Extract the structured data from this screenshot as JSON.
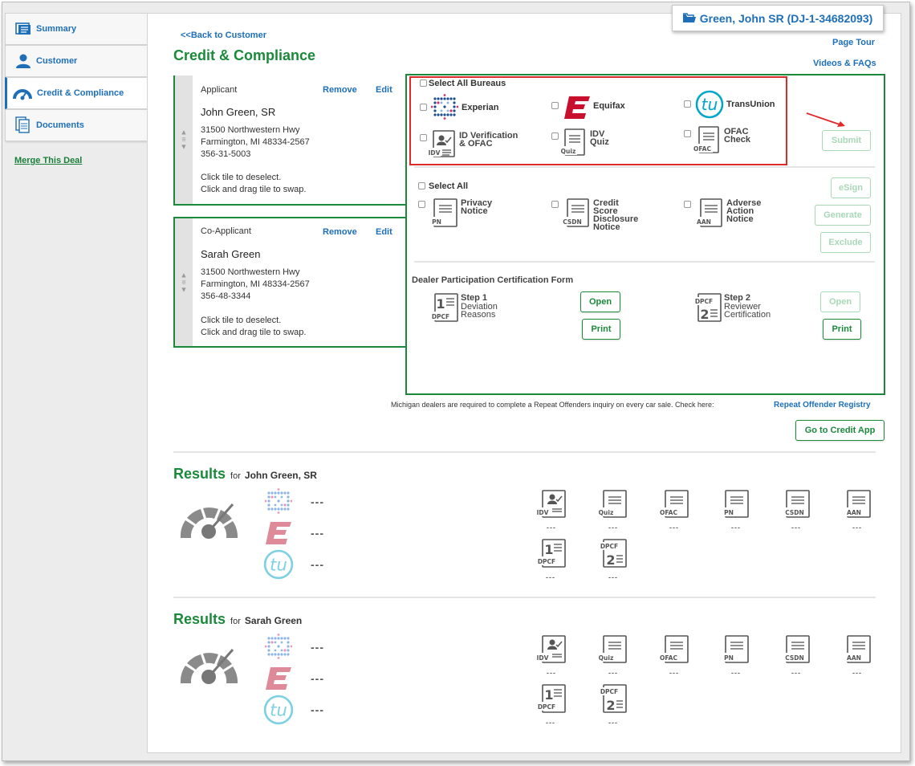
{
  "deal": {
    "title": "Green, John SR (DJ-1-34682093)"
  },
  "sidebar": {
    "items": [
      {
        "label": "Summary",
        "icon": "summary-icon"
      },
      {
        "label": "Customer",
        "icon": "person-icon"
      },
      {
        "label": "Credit & Compliance",
        "icon": "gauge-icon"
      },
      {
        "label": "Documents",
        "icon": "documents-icon"
      }
    ],
    "merge_label": "Merge This Deal"
  },
  "header": {
    "back_label": "<<Back to Customer",
    "title": "Credit & Compliance",
    "page_tour_label": "Page Tour",
    "videos_label": "Videos & FAQs"
  },
  "applicants": [
    {
      "role": "Applicant",
      "remove_label": "Remove",
      "edit_label": "Edit",
      "name": "John Green, SR",
      "address1": "31500 Northwestern Hwy",
      "address2": "Farmington, MI 48334-2567",
      "ssn": "356-31-5003",
      "hint1": "Click tile to deselect.",
      "hint2": "Click and drag tile to swap."
    },
    {
      "role": "Co-Applicant",
      "remove_label": "Remove",
      "edit_label": "Edit",
      "name": "Sarah Green",
      "address1": "31500 Northwestern Hwy",
      "address2": "Farmington, MI 48334-2567",
      "ssn": "356-48-3344",
      "hint1": "Click tile to deselect.",
      "hint2": "Click and drag tile to swap."
    }
  ],
  "bureaus": {
    "select_all_label": "Select All Bureaus",
    "experian": "Experian",
    "equifax": "Equifax",
    "transunion": "TransUnion",
    "idv_line1": "ID Verification",
    "idv_line2": "& OFAC",
    "idvquiz_line1": "IDV",
    "idvquiz_line2": "Quiz",
    "ofac_line1": "OFAC",
    "ofac_line2": "Check",
    "submit_label": "Submit"
  },
  "notices": {
    "select_all_label": "Select All",
    "privacy_line1": "Privacy",
    "privacy_line2": "Notice",
    "csdn_line1": "Credit",
    "csdn_line2": "Score",
    "csdn_line3": "Disclosure",
    "csdn_line4": "Notice",
    "aan_line1": "Adverse",
    "aan_line2": "Action",
    "aan_line3": "Notice",
    "esign_label": "eSign",
    "generate_label": "Generate",
    "exclude_label": "Exclude"
  },
  "dpcf": {
    "title": "Dealer Participation Certification Form",
    "step1_title": "Step 1",
    "step1_line1": "Deviation",
    "step1_line2": "Reasons",
    "step2_title": "Step 2",
    "step2_line1": "Reviewer",
    "step2_line2": "Certification",
    "open_label": "Open",
    "print_label": "Print"
  },
  "icon_labels": {
    "idv": "IDV",
    "quiz": "Quiz",
    "ofac": "OFAC",
    "pn": "PN",
    "csdn": "CSDN",
    "aan": "AAN",
    "dpcf": "DPCF",
    "one": "1",
    "two": "2"
  },
  "michigan": {
    "note": "Michigan dealers are required to complete a Repeat Offenders inquiry on every car sale. Check here:",
    "link_label": "Repeat Offender Registry"
  },
  "credit_app_label": "Go to Credit App",
  "results": [
    {
      "title": "Results",
      "for_label": "for",
      "name": "John Green, SR",
      "placeholder": "---"
    },
    {
      "title": "Results",
      "for_label": "for",
      "name": "Sarah Green",
      "placeholder": "---"
    }
  ],
  "colors": {
    "green": "#1a8a3a",
    "blue": "#1e6fb8",
    "highlight_red": "#e02a2a",
    "equifax_red": "#c8102e",
    "transunion_teal": "#00a6ca"
  }
}
